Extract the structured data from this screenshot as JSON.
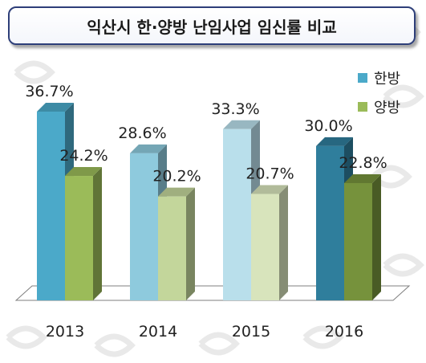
{
  "chart_data": {
    "type": "bar",
    "title": "익산시 한·양방 난임사업 임신률 비교",
    "categories": [
      "2013",
      "2014",
      "2015",
      "2016"
    ],
    "series": [
      {
        "name": "한방",
        "values": [
          36.7,
          28.6,
          33.3,
          30.0
        ],
        "labels": [
          "36.7%",
          "28.6%",
          "33.3%",
          "30.0%"
        ]
      },
      {
        "name": "양방",
        "values": [
          24.2,
          20.2,
          20.7,
          22.8
        ],
        "labels": [
          "24.2%",
          "20.2%",
          "20.7%",
          "22.8%"
        ]
      }
    ],
    "ylim": [
      0,
      40
    ],
    "grid": false,
    "legend": "top-right",
    "colors": {
      "hanbang": [
        "#4ba9c9",
        "#8ecadd",
        "#b9dfeb",
        "#2f7e9c"
      ],
      "yangbang": [
        "#9bbb59",
        "#c3d69b",
        "#d8e4bc",
        "#76923c"
      ],
      "legend_hanbang": "#4ba9c9",
      "legend_yangbang": "#9bbb59"
    }
  }
}
